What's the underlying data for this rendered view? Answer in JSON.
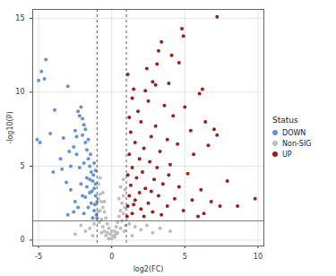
{
  "chart_data": {
    "type": "scatter",
    "x_label": "log2(FC)",
    "y_label": "-log10(P)",
    "legend": "right",
    "legend_title": "Status",
    "xlim": [
      -5.4,
      10.4
    ],
    "ylim": [
      -0.4,
      15.6
    ],
    "xticks": [
      -5,
      0,
      5,
      10
    ],
    "yticks": [
      0,
      5,
      10,
      15
    ],
    "grid": true,
    "vlines": [
      -1,
      1
    ],
    "hline": 1.3,
    "series": [
      {
        "name": "DOWN",
        "color": "#5f93d6",
        "points": [
          [
            -4.5,
            12.2
          ],
          [
            -4.8,
            11.4
          ],
          [
            -5.0,
            10.8
          ],
          [
            -4.6,
            10.9
          ],
          [
            -3.0,
            10.4
          ],
          [
            -3.9,
            8.8
          ],
          [
            -5.1,
            6.8
          ],
          [
            -4.9,
            6.6
          ],
          [
            -4.2,
            7.2
          ],
          [
            -3.3,
            6.9
          ],
          [
            -2.3,
            8.7
          ],
          [
            -2.1,
            9.0
          ],
          [
            -2.2,
            8.4
          ],
          [
            -2.0,
            8.2
          ],
          [
            -1.9,
            7.8
          ],
          [
            -2.5,
            7.4
          ],
          [
            -2.6,
            6.3
          ],
          [
            -2.9,
            6.0
          ],
          [
            -3.5,
            5.5
          ],
          [
            -4.0,
            4.6
          ],
          [
            -3.1,
            3.9
          ],
          [
            -2.8,
            3.4
          ],
          [
            -2.4,
            5.8
          ],
          [
            -2.0,
            7.1
          ],
          [
            -1.8,
            6.6
          ],
          [
            -1.7,
            6.1
          ],
          [
            -1.6,
            5.5
          ],
          [
            -1.9,
            5.2
          ],
          [
            -2.2,
            4.9
          ],
          [
            -1.5,
            5.0
          ],
          [
            -1.4,
            4.6
          ],
          [
            -1.7,
            4.2
          ],
          [
            -2.1,
            3.8
          ],
          [
            -2.5,
            2.6
          ],
          [
            -3.0,
            1.7
          ],
          [
            -2.6,
            1.9
          ],
          [
            -1.3,
            4.0
          ],
          [
            -1.2,
            3.5
          ],
          [
            -1.5,
            3.2
          ],
          [
            -1.8,
            2.9
          ],
          [
            -1.1,
            3.0
          ],
          [
            -1.4,
            2.5
          ],
          [
            -1.6,
            2.2
          ],
          [
            -1.0,
            2.6
          ],
          [
            -1.2,
            2.0
          ],
          [
            -1.05,
            1.7
          ],
          [
            -1.3,
            1.5
          ],
          [
            -1.9,
            1.8
          ],
          [
            -2.3,
            2.2
          ],
          [
            -1.7,
            3.6
          ],
          [
            -1.5,
            4.1
          ],
          [
            -1.25,
            4.4
          ],
          [
            -1.1,
            3.8
          ],
          [
            -1.35,
            3.3
          ],
          [
            -2.0,
            3.0
          ],
          [
            -1.6,
            6.8
          ],
          [
            -1.8,
            7.5
          ],
          [
            -2.4,
            7.0
          ],
          [
            -2.8,
            5.0
          ],
          [
            -3.4,
            4.8
          ],
          [
            -1.45,
            5.8
          ],
          [
            -1.2,
            5.2
          ],
          [
            -1.1,
            4.7
          ],
          [
            -1.0,
            1.5
          ],
          [
            -1.15,
            2.4
          ]
        ]
      },
      {
        "name": "Non-SIG",
        "color": "#bdbdbd",
        "points": [
          [
            -0.9,
            3.8
          ],
          [
            -0.8,
            3.1
          ],
          [
            -0.7,
            2.6
          ],
          [
            -0.6,
            2.2
          ],
          [
            -0.5,
            1.9
          ],
          [
            -0.4,
            1.5
          ],
          [
            -0.3,
            1.1
          ],
          [
            -0.2,
            0.8
          ],
          [
            -0.1,
            0.4
          ],
          [
            0,
            0.1
          ],
          [
            0.1,
            0.3
          ],
          [
            0.2,
            0.6
          ],
          [
            0.3,
            0.9
          ],
          [
            0.4,
            1.2
          ],
          [
            0.5,
            1.6
          ],
          [
            0.6,
            2.0
          ],
          [
            0.7,
            2.5
          ],
          [
            0.8,
            3.0
          ],
          [
            0.9,
            3.4
          ],
          [
            -0.9,
            2.8
          ],
          [
            -0.8,
            2.0
          ],
          [
            -0.7,
            1.4
          ],
          [
            -0.6,
            0.9
          ],
          [
            -0.5,
            0.6
          ],
          [
            -0.4,
            0.3
          ],
          [
            -0.2,
            0.1
          ],
          [
            0.2,
            0.2
          ],
          [
            0.4,
            0.5
          ],
          [
            0.6,
            0.8
          ],
          [
            0.7,
            1.3
          ],
          [
            0.8,
            1.8
          ],
          [
            0.9,
            2.2
          ],
          [
            -0.95,
            1.9
          ],
          [
            -0.85,
            1.2
          ],
          [
            -0.7,
            0.5
          ],
          [
            0.95,
            1.0
          ],
          [
            0.85,
            0.6
          ],
          [
            1.2,
            1.1
          ],
          [
            1.6,
            0.9
          ],
          [
            2.0,
            0.7
          ],
          [
            2.4,
            1.0
          ],
          [
            2.8,
            0.5
          ],
          [
            3.3,
            0.8
          ],
          [
            4.0,
            0.6
          ],
          [
            -1.2,
            1.1
          ],
          [
            -1.5,
            0.8
          ],
          [
            -1.8,
            0.6
          ],
          [
            -2.1,
            1.0
          ],
          [
            -2.5,
            0.4
          ],
          [
            -1.3,
            0.3
          ],
          [
            1.4,
            0.3
          ],
          [
            0.0,
            0.6
          ],
          [
            -0.3,
            0.5
          ],
          [
            0.3,
            0.4
          ],
          [
            -0.6,
            3.2
          ],
          [
            0.6,
            3.6
          ],
          [
            -0.8,
            4.2
          ],
          [
            0.8,
            4.1
          ],
          [
            -0.5,
            2.6
          ],
          [
            0.5,
            2.8
          ]
        ]
      },
      {
        "name": "UP",
        "color": "#a11d1d",
        "points": [
          [
            7.2,
            15.1
          ],
          [
            4.8,
            14.3
          ],
          [
            4.9,
            13.8
          ],
          [
            3.4,
            13.4
          ],
          [
            3.2,
            12.8
          ],
          [
            4.6,
            12.0
          ],
          [
            2.4,
            11.6
          ],
          [
            1.1,
            11.2
          ],
          [
            2.8,
            10.7
          ],
          [
            3.0,
            10.5
          ],
          [
            3.9,
            10.6
          ],
          [
            2.3,
            10.1
          ],
          [
            6.2,
            10.2
          ],
          [
            6.0,
            9.9
          ],
          [
            1.4,
            9.6
          ],
          [
            2.5,
            9.4
          ],
          [
            3.6,
            9.1
          ],
          [
            5.0,
            9.0
          ],
          [
            1.8,
            8.7
          ],
          [
            4.2,
            8.4
          ],
          [
            6.4,
            8.0
          ],
          [
            2.0,
            8.0
          ],
          [
            3.0,
            7.7
          ],
          [
            7.0,
            7.5
          ],
          [
            7.2,
            7.1
          ],
          [
            5.4,
            7.4
          ],
          [
            1.3,
            7.3
          ],
          [
            2.7,
            7.0
          ],
          [
            3.8,
            6.8
          ],
          [
            4.5,
            6.5
          ],
          [
            6.6,
            6.4
          ],
          [
            1.6,
            6.6
          ],
          [
            2.2,
            6.2
          ],
          [
            3.3,
            6.0
          ],
          [
            5.6,
            5.8
          ],
          [
            1.2,
            5.8
          ],
          [
            1.9,
            5.5
          ],
          [
            2.6,
            5.3
          ],
          [
            4.0,
            5.1
          ],
          [
            3.1,
            4.9
          ],
          [
            1.4,
            4.9
          ],
          [
            2.1,
            4.6
          ],
          [
            5.2,
            4.5
          ],
          [
            7.9,
            4.0
          ],
          [
            1.1,
            4.4
          ],
          [
            1.7,
            4.2
          ],
          [
            2.9,
            4.1
          ],
          [
            3.5,
            3.8
          ],
          [
            4.6,
            3.6
          ],
          [
            6.1,
            3.4
          ],
          [
            1.3,
            3.7
          ],
          [
            2.3,
            3.5
          ],
          [
            1.9,
            3.2
          ],
          [
            3.2,
            3.0
          ],
          [
            4.3,
            2.8
          ],
          [
            5.5,
            2.7
          ],
          [
            6.8,
            2.6
          ],
          [
            1.2,
            3.0
          ],
          [
            1.6,
            2.7
          ],
          [
            2.5,
            2.5
          ],
          [
            3.8,
            2.3
          ],
          [
            1.1,
            2.3
          ],
          [
            2.0,
            2.1
          ],
          [
            2.8,
            1.9
          ],
          [
            4.9,
            2.0
          ],
          [
            7.4,
            2.3
          ],
          [
            8.6,
            2.3
          ],
          [
            9.8,
            2.8
          ],
          [
            1.4,
            1.8
          ],
          [
            3.4,
            1.7
          ],
          [
            6.3,
            1.8
          ],
          [
            1.05,
            1.6
          ],
          [
            2.2,
            1.6
          ],
          [
            5.9,
            1.6
          ],
          [
            1.5,
            2.4
          ],
          [
            2.7,
            3.3
          ],
          [
            3.9,
            4.4
          ],
          [
            1.2,
            8.3
          ],
          [
            1.5,
            10.2
          ],
          [
            4.1,
            12.5
          ],
          [
            3.1,
            11.9
          ]
        ]
      }
    ]
  }
}
